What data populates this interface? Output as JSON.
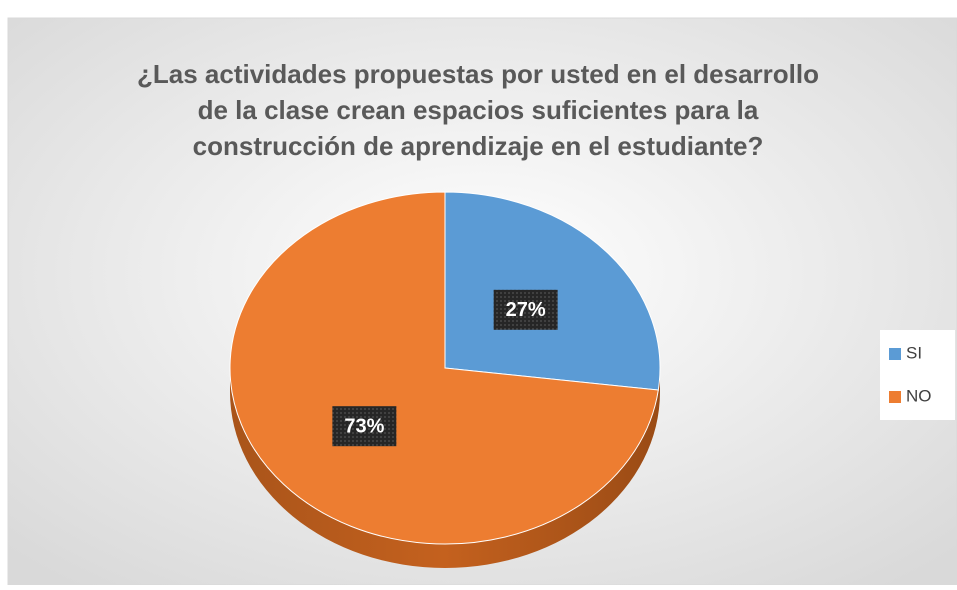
{
  "chart_data": {
    "type": "pie",
    "title": [
      "¿Las actividades propuestas por usted en el desarrollo",
      "de la clase crean espacios suficientes para la",
      "construcción de aprendizaje en el estudiante?"
    ],
    "categories": [
      "SI",
      "NO"
    ],
    "values": [
      27,
      73
    ],
    "value_labels": [
      "27%",
      "73%"
    ],
    "colors": [
      "#5b9bd5",
      "#ed7d31"
    ],
    "legend": "right"
  }
}
